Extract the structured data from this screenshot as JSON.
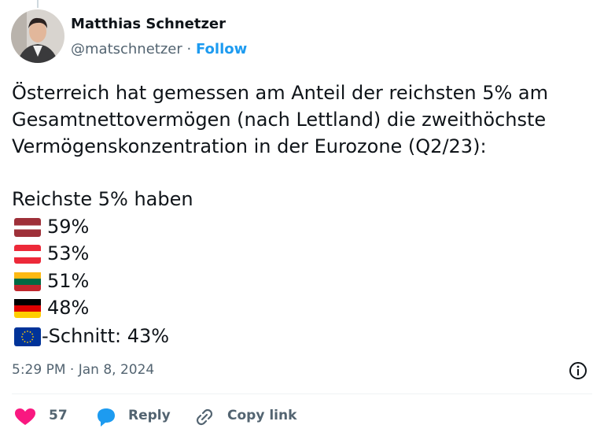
{
  "author": {
    "name": "Matthias Schnetzer",
    "handle": "@matschnetzer",
    "separator": "·",
    "follow": "Follow"
  },
  "post": {
    "lines": [
      "Österreich hat gemessen am Anteil der reichsten 5% am",
      "Gesamtnettovermögen (nach Lettland) die zweithöchste",
      "Vermögenskonzentration in der Eurozone (Q2/23):"
    ],
    "list_title": "Reichste 5% haben",
    "items": [
      "59%",
      "53%",
      "51%",
      "48%",
      "-Schnitt: 43%"
    ]
  },
  "timestamp": "5:29 PM · Jan 8, 2024",
  "actions": {
    "likes": "57",
    "reply": "Reply",
    "copy_link": "Copy link"
  }
}
